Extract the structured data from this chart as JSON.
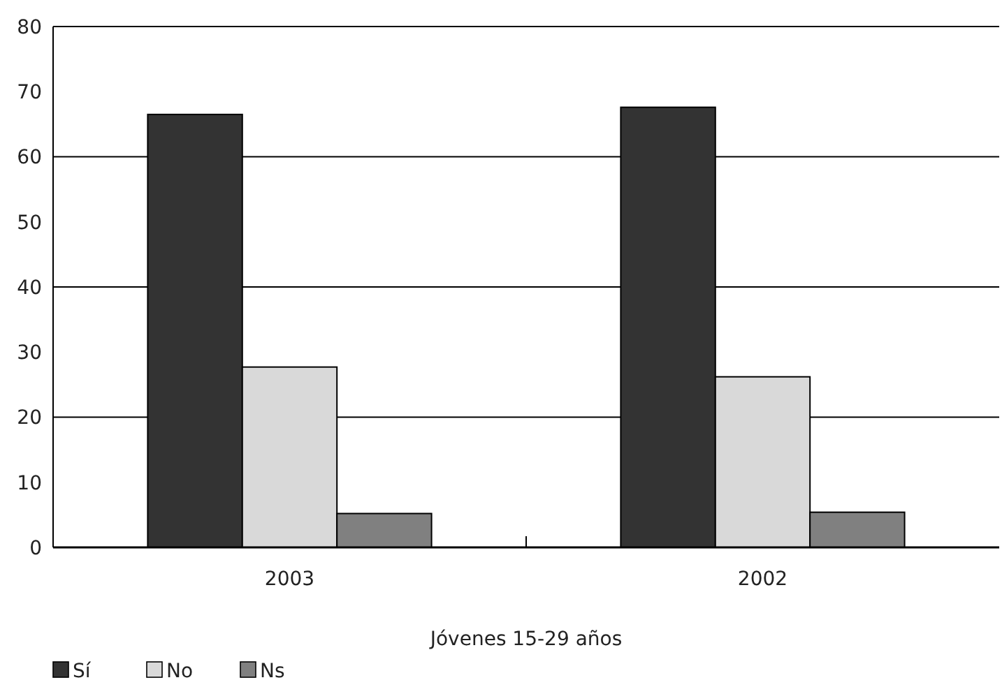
{
  "chart_data": {
    "type": "bar",
    "xlabel": "Jóvenes 15-29 años",
    "categories": [
      "2003",
      "2002"
    ],
    "series": [
      {
        "name": "Sí",
        "color": "#333333",
        "values": [
          66.5,
          67.6
        ]
      },
      {
        "name": "No",
        "color": "#d9d9d9",
        "values": [
          27.7,
          26.2
        ]
      },
      {
        "name": "Ns",
        "color": "#808080",
        "values": [
          5.2,
          5.4
        ]
      }
    ],
    "ylim": [
      0,
      80
    ],
    "yticks": [
      0,
      10,
      20,
      30,
      40,
      50,
      60,
      70,
      80
    ],
    "grid": "y",
    "legend": "bottom left"
  }
}
